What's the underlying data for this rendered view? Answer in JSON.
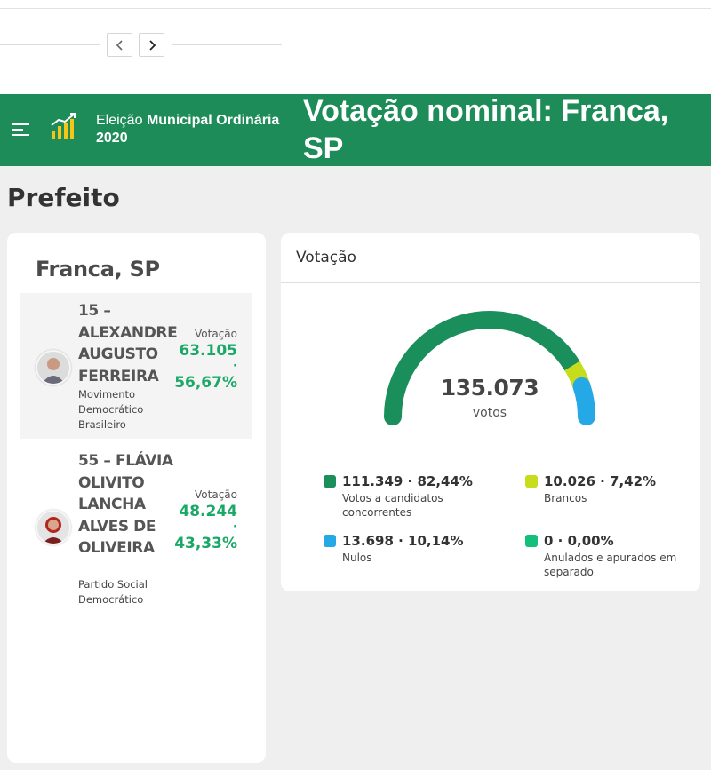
{
  "pager": {
    "prev_icon": "chevron-left-icon",
    "next_icon": "chevron-right-icon"
  },
  "header": {
    "election_prefix": "Eleição",
    "election_bold": "Municipal Ordinária",
    "election_year": "2020",
    "page_title": "Votação nominal: Franca, SP",
    "background_color": "#1d8c59"
  },
  "section_title": "Prefeito",
  "city": "Franca, SP",
  "candidates": [
    {
      "name": "15 – ALEXANDRE AUGUSTO FERREIRA",
      "party": "Movimento Democrático Brasileiro",
      "vote_label": "Votação",
      "votes": "63.105",
      "separator": "·",
      "percent": "56,67%"
    },
    {
      "name": "55 – FLÁVIA OLIVITO LANCHA ALVES DE OLIVEIRA",
      "party": "Partido Social Democrático",
      "vote_label": "Votação",
      "votes": "48.244",
      "separator": "·",
      "percent": "43,33%"
    }
  ],
  "votacao": {
    "title": "Votação",
    "total": "135.073",
    "total_unit": "votos",
    "legend": [
      {
        "value": "111.349 · 82,44%",
        "label": "Votos a candidatos concorrentes",
        "color": "#1a8f5c",
        "fraction": 0.8244
      },
      {
        "value": "10.026 · 7,42%",
        "label": "Brancos",
        "color": "#c8dc1e",
        "fraction": 0.0742
      },
      {
        "value": "13.698 · 10,14%",
        "label": "Nulos",
        "color": "#25a9e6",
        "fraction": 0.1014
      },
      {
        "value": "0 · 0,00%",
        "label": "Anulados e apurados em separado",
        "color": "#13bf7a",
        "fraction": 0.0
      }
    ]
  },
  "colors": {
    "accent_green": "#1aa867"
  }
}
